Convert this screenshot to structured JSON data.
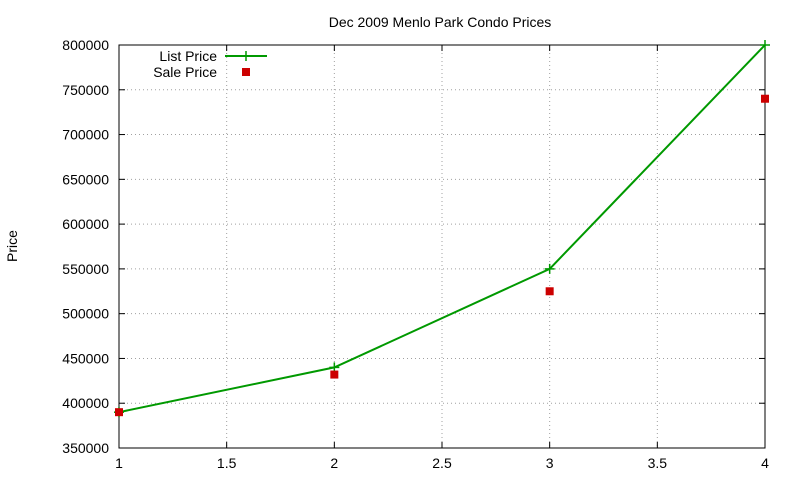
{
  "chart_data": {
    "type": "line",
    "title": "Dec 2009 Menlo Park Condo Prices",
    "xlabel": "",
    "ylabel": "Price",
    "xlim": [
      1,
      4
    ],
    "ylim": [
      350000,
      800000
    ],
    "xticks": [
      1,
      1.5,
      2,
      2.5,
      3,
      3.5,
      4
    ],
    "yticks": [
      350000,
      400000,
      450000,
      500000,
      550000,
      600000,
      650000,
      700000,
      750000,
      800000
    ],
    "grid": true,
    "legend_position": "top-left",
    "series": [
      {
        "name": "List Price",
        "style": "line+points",
        "marker": "plus",
        "color": "#009900",
        "x": [
          1,
          2,
          3,
          4
        ],
        "y": [
          390000,
          440000,
          550000,
          800000
        ]
      },
      {
        "name": "Sale Price",
        "style": "points",
        "marker": "square",
        "color": "#cc0000",
        "x": [
          1,
          2,
          3,
          4
        ],
        "y": [
          390000,
          432000,
          525000,
          740000
        ]
      }
    ]
  }
}
